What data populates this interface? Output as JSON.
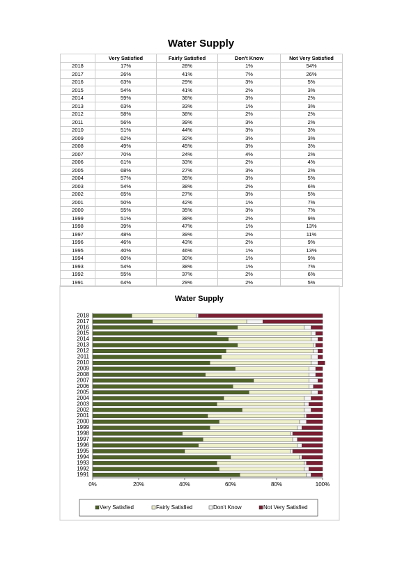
{
  "title": "Water Supply",
  "table": {
    "header": [
      "Very Satisfied",
      "Fairly Satisfied",
      "Don't Know",
      "Not Very Satisfied"
    ],
    "rows": [
      [
        "2018",
        "17%",
        "28%",
        "1%",
        "54%"
      ],
      [
        "2017",
        "26%",
        "41%",
        "7%",
        "26%"
      ],
      [
        "2016",
        "63%",
        "29%",
        "3%",
        "5%"
      ],
      [
        "2015",
        "54%",
        "41%",
        "2%",
        "3%"
      ],
      [
        "2014",
        "59%",
        "36%",
        "3%",
        "2%"
      ],
      [
        "2013",
        "63%",
        "33%",
        "1%",
        "3%"
      ],
      [
        "2012",
        "58%",
        "38%",
        "2%",
        "2%"
      ],
      [
        "2011",
        "56%",
        "39%",
        "3%",
        "2%"
      ],
      [
        "2010",
        "51%",
        "44%",
        "3%",
        "3%"
      ],
      [
        "2009",
        "62%",
        "32%",
        "3%",
        "3%"
      ],
      [
        "2008",
        "49%",
        "45%",
        "3%",
        "3%"
      ],
      [
        "2007",
        "70%",
        "24%",
        "4%",
        "2%"
      ],
      [
        "2006",
        "61%",
        "33%",
        "2%",
        "4%"
      ],
      [
        "2005",
        "68%",
        "27%",
        "3%",
        "2%"
      ],
      [
        "2004",
        "57%",
        "35%",
        "3%",
        "5%"
      ],
      [
        "2003",
        "54%",
        "38%",
        "2%",
        "6%"
      ],
      [
        "2002",
        "65%",
        "27%",
        "3%",
        "5%"
      ],
      [
        "2001",
        "50%",
        "42%",
        "1%",
        "7%"
      ],
      [
        "2000",
        "55%",
        "35%",
        "3%",
        "7%"
      ],
      [
        "1999",
        "51%",
        "38%",
        "2%",
        "9%"
      ],
      [
        "1998",
        "39%",
        "47%",
        "1%",
        "13%"
      ],
      [
        "1997",
        "48%",
        "39%",
        "2%",
        "11%"
      ],
      [
        "1996",
        "46%",
        "43%",
        "2%",
        "9%"
      ],
      [
        "1995",
        "40%",
        "46%",
        "1%",
        "13%"
      ],
      [
        "1994",
        "60%",
        "30%",
        "1%",
        "9%"
      ],
      [
        "1993",
        "54%",
        "38%",
        "1%",
        "7%"
      ],
      [
        "1992",
        "55%",
        "37%",
        "2%",
        "6%"
      ],
      [
        "1991",
        "64%",
        "29%",
        "2%",
        "5%"
      ]
    ]
  },
  "chart_data": {
    "type": "stacked-bar-horizontal",
    "title": "Water Supply",
    "categories": [
      "2018",
      "2017",
      "2016",
      "2015",
      "2014",
      "2013",
      "2012",
      "2011",
      "2010",
      "2009",
      "2008",
      "2007",
      "2006",
      "2005",
      "2004",
      "2003",
      "2002",
      "2001",
      "2000",
      "1999",
      "1998",
      "1997",
      "1996",
      "1995",
      "1994",
      "1993",
      "1992",
      "1991"
    ],
    "series": [
      {
        "name": "Very Satisfied",
        "color": "#4f6228",
        "values": [
          17,
          26,
          63,
          54,
          59,
          63,
          58,
          56,
          51,
          62,
          49,
          70,
          61,
          68,
          57,
          54,
          65,
          50,
          55,
          51,
          39,
          48,
          46,
          40,
          60,
          54,
          55,
          64
        ]
      },
      {
        "name": "Fairly Satisfied",
        "color": "#eef0cc",
        "values": [
          28,
          41,
          29,
          41,
          36,
          33,
          38,
          39,
          44,
          32,
          45,
          24,
          33,
          27,
          35,
          38,
          27,
          42,
          35,
          38,
          47,
          39,
          43,
          46,
          30,
          38,
          37,
          29
        ]
      },
      {
        "name": "Don't Know",
        "color": "#f4f4f4",
        "values": [
          1,
          7,
          3,
          2,
          3,
          1,
          2,
          3,
          3,
          3,
          3,
          4,
          2,
          3,
          3,
          2,
          3,
          1,
          3,
          2,
          1,
          2,
          2,
          1,
          1,
          1,
          2,
          2
        ]
      },
      {
        "name": "Not Very Satisfied",
        "color": "#7a1f33",
        "values": [
          54,
          26,
          5,
          3,
          2,
          3,
          2,
          2,
          3,
          3,
          3,
          2,
          4,
          2,
          5,
          6,
          5,
          7,
          7,
          9,
          13,
          11,
          9,
          13,
          9,
          7,
          6,
          5
        ]
      }
    ],
    "xlim": [
      0,
      100
    ],
    "xticks": [
      {
        "value": 0,
        "label": "0%"
      },
      {
        "value": 20,
        "label": "20%"
      },
      {
        "value": 40,
        "label": "40%"
      },
      {
        "value": 60,
        "label": "60%"
      },
      {
        "value": 80,
        "label": "80%"
      },
      {
        "value": 100,
        "label": "100%"
      }
    ],
    "legend": "bottom"
  }
}
